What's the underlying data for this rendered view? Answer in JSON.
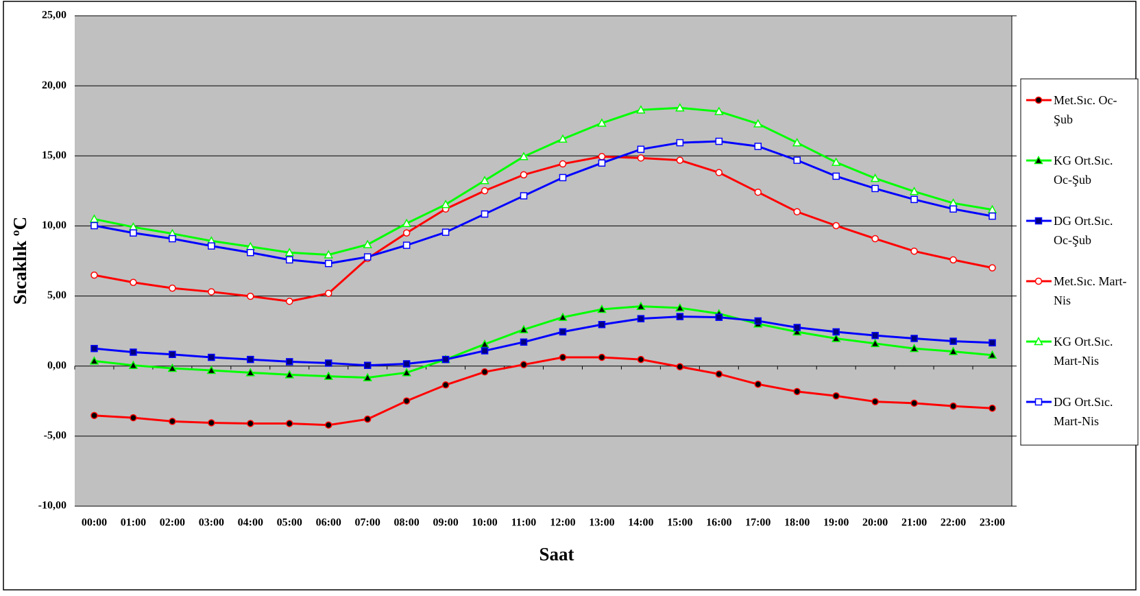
{
  "chart_data": {
    "type": "line",
    "y_label": "Sıcaklık ºC",
    "x_label": "Saat",
    "categories": [
      "00:00",
      "01:00",
      "02:00",
      "03:00",
      "04:00",
      "05:00",
      "06:00",
      "07:00",
      "08:00",
      "09:00",
      "10:00",
      "11:00",
      "12:00",
      "13:00",
      "14:00",
      "15:00",
      "16:00",
      "17:00",
      "18:00",
      "19:00",
      "20:00",
      "21:00",
      "22:00",
      "23:00"
    ],
    "ylim": [
      -10,
      25
    ],
    "yticks": [
      {
        "value": -10,
        "label": "-10,00"
      },
      {
        "value": -5,
        "label": "-5,00"
      },
      {
        "value": 0,
        "label": "0,00"
      },
      {
        "value": 5,
        "label": "5,00"
      },
      {
        "value": 10,
        "label": "10,00"
      },
      {
        "value": 15,
        "label": "15,00"
      },
      {
        "value": 20,
        "label": "20,00"
      },
      {
        "value": 25,
        "label": "25,00"
      }
    ],
    "grid": true,
    "legend": "right",
    "series": [
      {
        "name": "Met.Sıc. Oc-Şub",
        "color": "#ff0000",
        "marker": "circle",
        "marker_fill": "#000000",
        "values": [
          -3.53,
          -3.69,
          -3.95,
          -4.05,
          -4.1,
          -4.1,
          -4.21,
          -3.79,
          -2.49,
          -1.35,
          -0.42,
          0.1,
          0.62,
          0.62,
          0.47,
          -0.05,
          -0.57,
          -1.3,
          -1.82,
          -2.13,
          -2.54,
          -2.65,
          -2.86,
          -3.01
        ]
      },
      {
        "name": "KG Ort.Sıc. Oc-Şub",
        "color": "#00ff00",
        "marker": "triangle",
        "marker_fill": "#000000",
        "values": [
          0.36,
          0.05,
          -0.16,
          -0.31,
          -0.47,
          -0.62,
          -0.73,
          -0.83,
          -0.47,
          0.47,
          1.56,
          2.6,
          3.48,
          4.05,
          4.26,
          4.15,
          3.74,
          3.01,
          2.44,
          1.97,
          1.61,
          1.25,
          1.04,
          0.78
        ]
      },
      {
        "name": "DG Ort.Sıc. Oc-Şub",
        "color": "#0000ff",
        "marker": "square",
        "marker_fill": "#000080",
        "values": [
          1.25,
          0.99,
          0.83,
          0.62,
          0.47,
          0.31,
          0.21,
          0.05,
          0.16,
          0.47,
          1.09,
          1.71,
          2.44,
          2.96,
          3.38,
          3.53,
          3.48,
          3.22,
          2.75,
          2.44,
          2.18,
          1.97,
          1.77,
          1.66
        ]
      },
      {
        "name": "Met.Sıc. Mart-Nis",
        "color": "#ff0000",
        "marker": "circle",
        "marker_fill": "#ffffff",
        "values": [
          6.49,
          5.97,
          5.56,
          5.3,
          4.98,
          4.62,
          5.19,
          7.68,
          9.5,
          11.21,
          12.51,
          13.65,
          14.43,
          14.95,
          14.85,
          14.69,
          13.81,
          12.41,
          11.01,
          10.02,
          9.09,
          8.2,
          7.58,
          7.01
        ]
      },
      {
        "name": "KG Ort.Sıc. Mart-Nis",
        "color": "#00ff00",
        "marker": "triangle",
        "marker_fill": "#ffffff",
        "values": [
          10.49,
          9.92,
          9.45,
          8.93,
          8.52,
          8.1,
          7.94,
          8.67,
          10.18,
          11.53,
          13.24,
          14.95,
          16.2,
          17.34,
          18.28,
          18.43,
          18.17,
          17.29,
          15.94,
          14.54,
          13.4,
          12.46,
          11.63,
          11.16
        ]
      },
      {
        "name": "DG Ort.Sıc. Mart-Nis",
        "color": "#0000ff",
        "marker": "square",
        "marker_fill": "#ffffff",
        "values": [
          10.02,
          9.5,
          9.09,
          8.57,
          8.1,
          7.58,
          7.32,
          7.79,
          8.62,
          9.55,
          10.85,
          12.15,
          13.45,
          14.49,
          15.47,
          15.94,
          16.04,
          15.68,
          14.69,
          13.55,
          12.67,
          11.89,
          11.21,
          10.7
        ]
      }
    ]
  }
}
